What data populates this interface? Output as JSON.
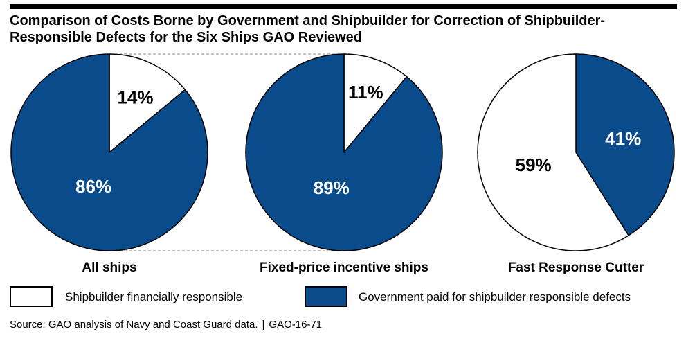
{
  "title_line1": "Comparison of Costs Borne by Government and Shipbuilder for Correction of Shipbuilder-",
  "title_line2": "Responsible Defects for the Six Ships GAO Reviewed",
  "colors": {
    "government": "#0a4b8c",
    "shipbuilder": "#ffffff",
    "outline": "#000000",
    "connector": "#888888"
  },
  "legend": [
    {
      "label": "Shipbuilder financially responsible",
      "color": "#ffffff"
    },
    {
      "label": "Government paid for shipbuilder responsible defects",
      "color": "#0a4b8c"
    }
  ],
  "source": {
    "text": "Source: GAO analysis of Navy and Coast Guard data.",
    "separator": "|",
    "report": "GAO-16-71"
  },
  "chart_data": [
    {
      "type": "pie",
      "title": "All ships",
      "series": [
        {
          "name": "Shipbuilder financially responsible",
          "value": 14,
          "label": "14%"
        },
        {
          "name": "Government paid for shipbuilder responsible defects",
          "value": 86,
          "label": "86%"
        }
      ]
    },
    {
      "type": "pie",
      "title": "Fixed-price incentive ships",
      "series": [
        {
          "name": "Shipbuilder financially responsible",
          "value": 11,
          "label": "11%"
        },
        {
          "name": "Government paid for shipbuilder responsible defects",
          "value": 89,
          "label": "89%"
        }
      ]
    },
    {
      "type": "pie",
      "title": "Fast Response Cutter",
      "series": [
        {
          "name": "Government paid for shipbuilder responsible defects",
          "value": 41,
          "label": "41%"
        },
        {
          "name": "Shipbuilder financially responsible",
          "value": 59,
          "label": "59%"
        }
      ]
    }
  ]
}
